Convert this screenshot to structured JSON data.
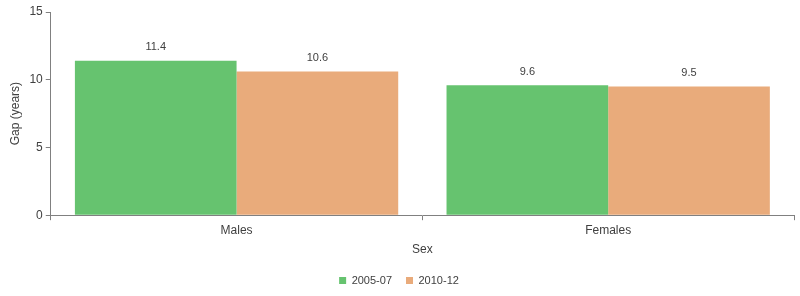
{
  "chart_data": {
    "type": "bar",
    "categories": [
      "Males",
      "Females"
    ],
    "series": [
      {
        "name": "2005-07",
        "color": "#66c36f",
        "values": [
          11.4,
          9.6
        ]
      },
      {
        "name": "2010-12",
        "color": "#e9ab7b",
        "values": [
          10.6,
          9.5
        ]
      }
    ],
    "x_label": "Sex",
    "y_label": "Gap (years)",
    "ylim": [
      0,
      15
    ],
    "yticks": [
      0,
      5,
      10,
      15
    ],
    "grid": false,
    "legend": "bottom",
    "data_labels": true
  }
}
